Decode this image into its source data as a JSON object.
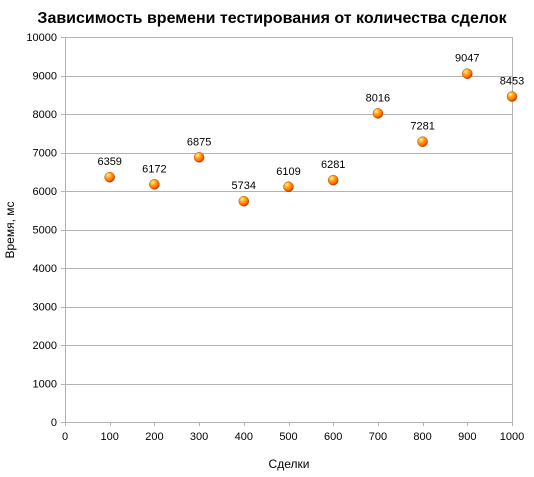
{
  "chart_data": {
    "type": "scatter",
    "title": "Зависимость времени тестирования от количества сделок",
    "xlabel": "Сделки",
    "ylabel": "Время, мс",
    "xlim": [
      0,
      1000
    ],
    "ylim": [
      0,
      10000
    ],
    "xticks": [
      0,
      100,
      200,
      300,
      400,
      500,
      600,
      700,
      800,
      900,
      1000
    ],
    "yticks": [
      0,
      1000,
      2000,
      3000,
      4000,
      5000,
      6000,
      7000,
      8000,
      9000,
      10000
    ],
    "grid": "horizontal",
    "marker_color": "#ff6600",
    "points": [
      {
        "x": 100,
        "y": 6359,
        "label": "6359"
      },
      {
        "x": 200,
        "y": 6172,
        "label": "6172"
      },
      {
        "x": 300,
        "y": 6875,
        "label": "6875"
      },
      {
        "x": 400,
        "y": 5734,
        "label": "5734"
      },
      {
        "x": 500,
        "y": 6109,
        "label": "6109"
      },
      {
        "x": 600,
        "y": 6281,
        "label": "6281"
      },
      {
        "x": 700,
        "y": 8016,
        "label": "8016"
      },
      {
        "x": 800,
        "y": 7281,
        "label": "7281"
      },
      {
        "x": 900,
        "y": 9047,
        "label": "9047"
      },
      {
        "x": 1000,
        "y": 8453,
        "label": "8453"
      }
    ]
  }
}
